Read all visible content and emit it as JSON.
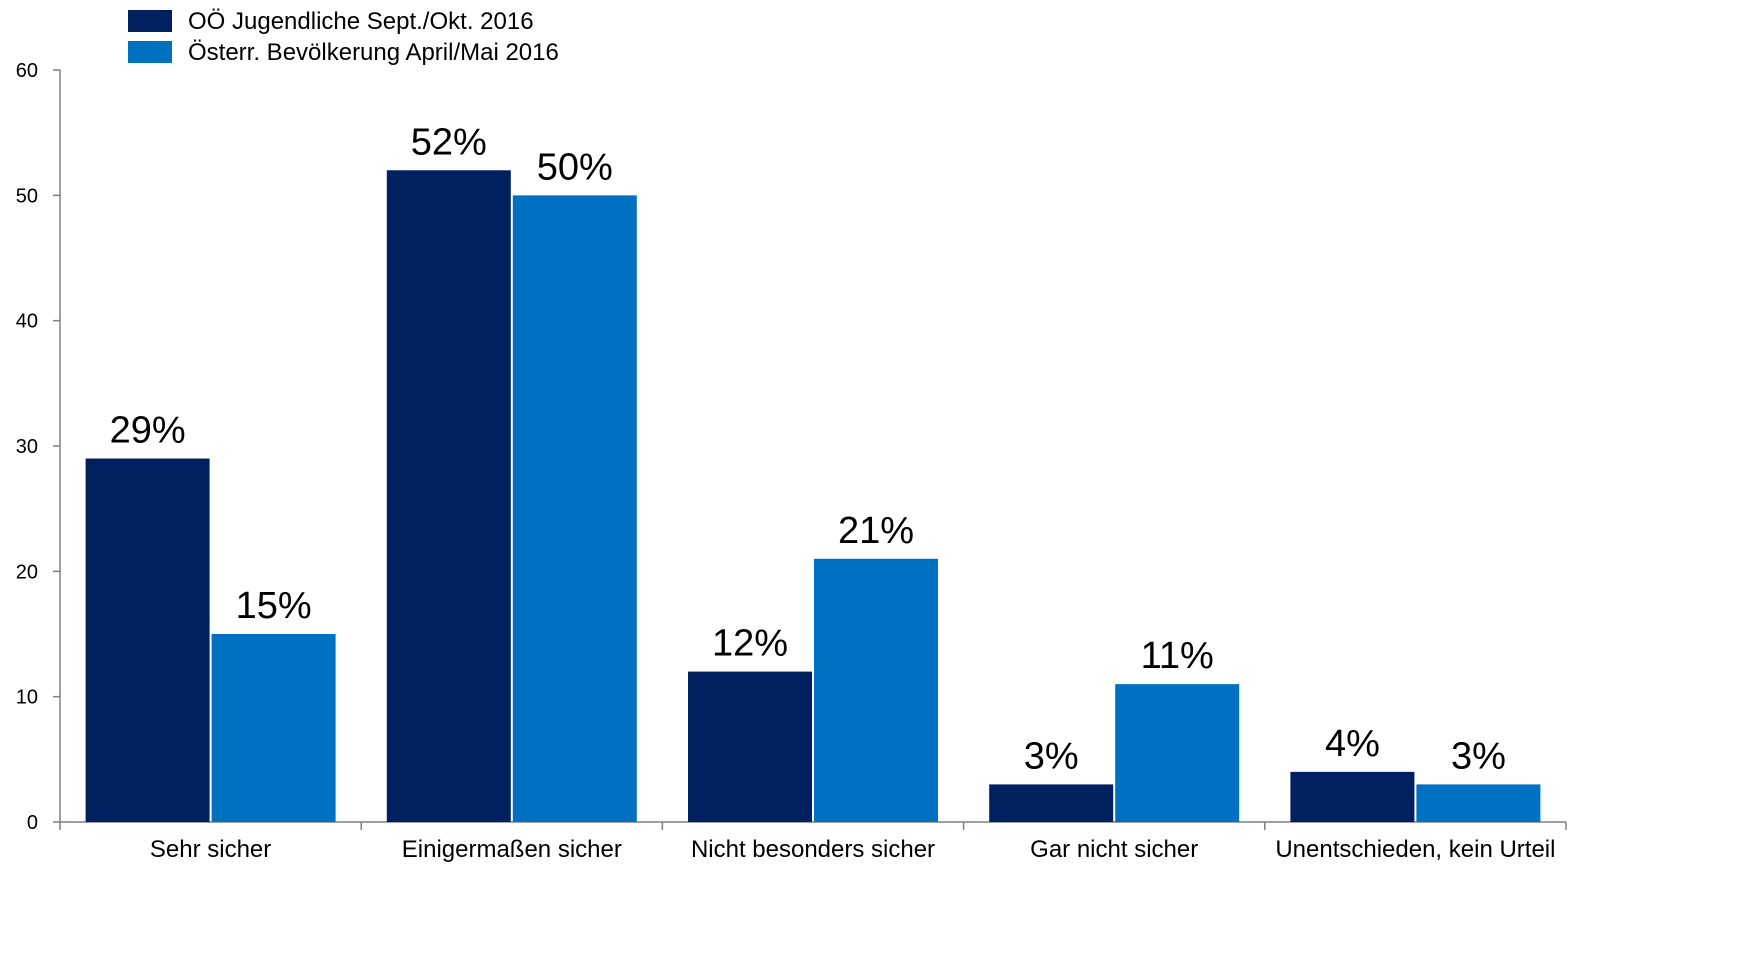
{
  "chart_data": {
    "type": "bar",
    "categories": [
      "Sehr sicher",
      "Einigermaßen sicher",
      "Nicht besonders sicher",
      "Gar nicht sicher",
      "Unentschieden, kein Urteil"
    ],
    "series": [
      {
        "name": "OÖ Jugendliche Sept./Okt. 2016",
        "color": "#002060",
        "values": [
          29,
          52,
          12,
          3,
          4
        ],
        "labels": [
          "29%",
          "52%",
          "12%",
          "3%",
          "4%"
        ]
      },
      {
        "name": "Österr. Bevölkerung April/Mai 2016",
        "color": "#0070C0",
        "values": [
          15,
          50,
          21,
          11,
          3
        ],
        "labels": [
          "15%",
          "50%",
          "21%",
          "11%",
          "3%"
        ]
      }
    ],
    "yticks": [
      "0",
      "10",
      "20",
      "30",
      "40",
      "50",
      "60"
    ],
    "ylim": [
      0,
      60
    ],
    "grid": false,
    "legend_position": "top-left",
    "title": "",
    "xlabel": "",
    "ylabel": ""
  }
}
